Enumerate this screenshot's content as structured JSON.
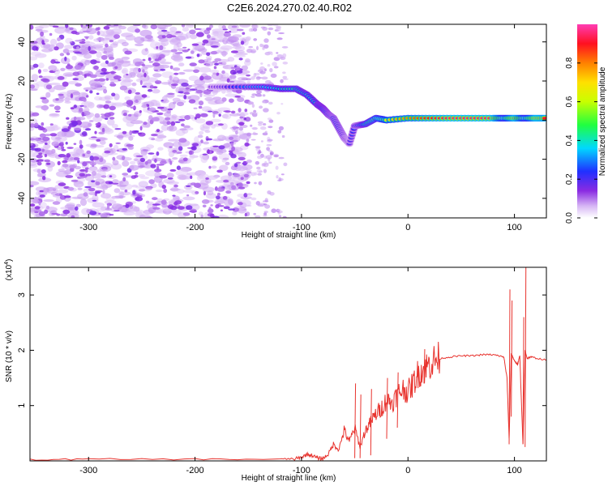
{
  "title": "C2E6.2024.270.02.40.R02",
  "chart_data": [
    {
      "type": "heatmap",
      "xlabel": "Height of straight line (km)",
      "ylabel": "Frequency (Hz)",
      "xlim": [
        -355,
        130
      ],
      "ylim": [
        -50,
        49
      ],
      "xticks": [
        -300,
        -200,
        -100,
        0,
        100
      ],
      "yticks": [
        -40,
        -20,
        0,
        20,
        40
      ],
      "colorbar": {
        "label": "Normalized spectral amplitude",
        "range": [
          0.0,
          1.0
        ],
        "ticks": [
          0.0,
          0.2,
          0.4,
          0.6,
          0.8
        ],
        "tick_labels": [
          "0.0",
          "0.2",
          "0.4",
          "0.6",
          "0.8"
        ],
        "colormap": "rainbow (white-purple-blue-cyan-green-yellow-red-magenta)"
      },
      "noise_region": {
        "x": [
          -355,
          -150
        ],
        "density": "dense"
      },
      "noise_region_sparse": {
        "x": [
          -150,
          -115
        ],
        "density": "sparse"
      },
      "ridge": {
        "x": [
          -185,
          -170,
          -150,
          -135,
          -120,
          -105,
          -95,
          -85,
          -80,
          -75,
          -70,
          -65,
          -60,
          -55,
          -50,
          -40,
          -30,
          -20,
          0,
          20,
          40,
          60,
          80,
          90,
          100,
          110,
          120,
          130
        ],
        "y": [
          17,
          17,
          17,
          17,
          16,
          16,
          13,
          8,
          6,
          3,
          1,
          -4,
          -9,
          -12,
          -3,
          -2,
          1,
          0,
          1,
          1,
          1,
          1,
          1,
          1,
          1,
          1,
          1,
          1
        ],
        "amplitude": [
          0.15,
          0.2,
          0.3,
          0.35,
          0.4,
          0.45,
          0.4,
          0.4,
          0.4,
          0.35,
          0.3,
          0.3,
          0.25,
          0.2,
          0.25,
          0.45,
          0.55,
          0.7,
          0.8,
          0.9,
          0.95,
          0.95,
          0.95,
          0.6,
          0.95,
          0.6,
          0.95,
          0.9
        ]
      }
    },
    {
      "type": "line",
      "xlabel": "Height of straight line (km)",
      "ylabel": "SNR (10 * v/v)",
      "yscale_note": "(x10^4)",
      "scale_text": "(x10",
      "scale_exp": "4",
      "scale_close": ")",
      "xlim": [
        -355,
        130
      ],
      "ylim": [
        0,
        3.5
      ],
      "xticks": [
        -300,
        -200,
        -100,
        0,
        100
      ],
      "yticks": [
        1,
        2,
        3
      ],
      "series": [
        {
          "color": "#e8332e",
          "x": [
            -355,
            -300,
            -200,
            -120,
            -105,
            -100,
            -95,
            -90,
            -85,
            -80,
            -75,
            -70,
            -65,
            -60,
            -55,
            -50,
            -45,
            -40,
            -35,
            -30,
            -25,
            -20,
            -15,
            -10,
            -5,
            0,
            5,
            10,
            15,
            20,
            25,
            30,
            40,
            50,
            60,
            70,
            80,
            85,
            90,
            93,
            95,
            97,
            100,
            103,
            105,
            108,
            110,
            112,
            115,
            120,
            130
          ],
          "y": [
            0.02,
            0.03,
            0.03,
            0.03,
            0.04,
            0.06,
            0.12,
            0.1,
            0.05,
            0.04,
            0.12,
            0.3,
            0.2,
            0.55,
            0.35,
            0.6,
            0.25,
            0.55,
            0.7,
            0.85,
            0.95,
            1.1,
            1.05,
            1.2,
            1.3,
            1.25,
            1.4,
            1.6,
            1.65,
            1.75,
            1.82,
            1.85,
            1.88,
            1.9,
            1.9,
            1.92,
            1.92,
            1.9,
            1.88,
            1.5,
            0.4,
            1.95,
            1.8,
            1.75,
            1.9,
            0.3,
            2.0,
            1.85,
            1.88,
            1.86,
            1.82
          ]
        }
      ],
      "spikes": [
        {
          "x": -50,
          "top": 1.4,
          "bottom": 0.05
        },
        {
          "x": -45,
          "top": 1.2,
          "bottom": 0.05
        },
        {
          "x": -35,
          "top": 1.3,
          "bottom": 0.1
        },
        {
          "x": -20,
          "top": 1.5,
          "bottom": 0.4
        },
        {
          "x": -10,
          "top": 1.6,
          "bottom": 0.6
        },
        {
          "x": 15,
          "top": 2.02,
          "bottom": 1.4
        },
        {
          "x": 95,
          "top": 3.1,
          "bottom": 0.3
        },
        {
          "x": 97,
          "top": 2.9,
          "bottom": 0.8
        },
        {
          "x": 108,
          "top": 2.6,
          "bottom": 0.3
        },
        {
          "x": 110,
          "top": 3.5,
          "bottom": 0.25
        }
      ]
    }
  ]
}
